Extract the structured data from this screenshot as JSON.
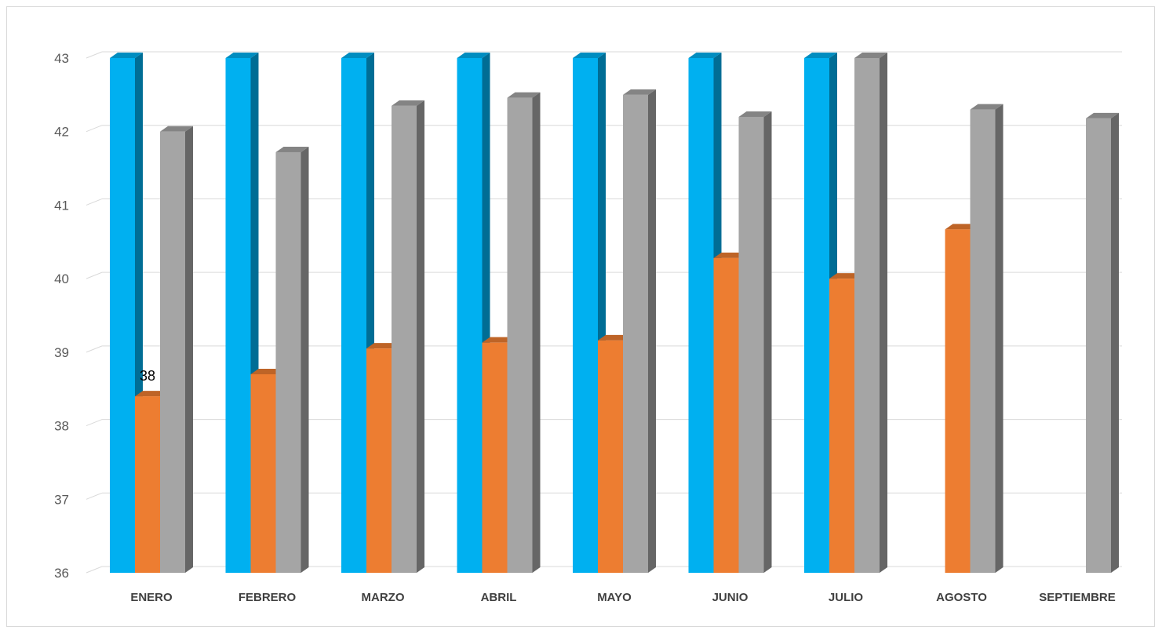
{
  "chart_data": {
    "type": "bar",
    "style": "3d-clustered-column",
    "categories": [
      "ENERO",
      "FEBRERO",
      "MARZO",
      "ABRIL",
      "MAYO",
      "JUNIO",
      "JULIO",
      "AGOSTO",
      "SEPTIEMBRE"
    ],
    "series": [
      {
        "values": [
          43,
          43,
          43,
          43,
          43,
          43,
          43,
          null,
          null
        ],
        "color": "#00b0f0"
      },
      {
        "values": [
          38.4,
          38.7,
          39.05,
          39.13,
          39.16,
          40.28,
          40,
          40.67,
          null
        ],
        "color": "#ed7d31"
      },
      {
        "values": [
          42,
          41.72,
          42.35,
          42.46,
          42.5,
          42.2,
          43,
          42.3,
          42.18
        ],
        "color": "#a5a5a5"
      }
    ],
    "data_labels": [
      {
        "series": 1,
        "category": "ENERO",
        "text": "38"
      }
    ],
    "yticks": [
      "36",
      "37",
      "38",
      "39",
      "40",
      "41",
      "42",
      "43"
    ],
    "ylim": [
      36,
      43
    ],
    "grid": true,
    "legend": "none"
  }
}
